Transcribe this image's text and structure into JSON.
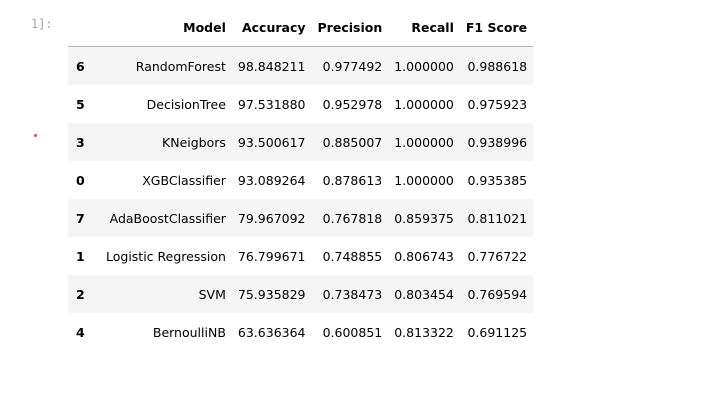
{
  "cell": {
    "prompt": "1]:"
  },
  "table": {
    "columns": [
      "Model",
      "Accuracy",
      "Precision",
      "Recall",
      "F1 Score"
    ],
    "rows": [
      {
        "index": "6",
        "model": "RandomForest",
        "accuracy": "98.848211",
        "precision": "0.977492",
        "recall": "1.000000",
        "f1": "0.988618"
      },
      {
        "index": "5",
        "model": "DecisionTree",
        "accuracy": "97.531880",
        "precision": "0.952978",
        "recall": "1.000000",
        "f1": "0.975923"
      },
      {
        "index": "3",
        "model": "KNeigbors",
        "accuracy": "93.500617",
        "precision": "0.885007",
        "recall": "1.000000",
        "f1": "0.938996"
      },
      {
        "index": "0",
        "model": "XGBClassifier",
        "accuracy": "93.089264",
        "precision": "0.878613",
        "recall": "1.000000",
        "f1": "0.935385"
      },
      {
        "index": "7",
        "model": "AdaBoostClassifier",
        "accuracy": "79.967092",
        "precision": "0.767818",
        "recall": "0.859375",
        "f1": "0.811021"
      },
      {
        "index": "1",
        "model": "Logistic Regression",
        "accuracy": "76.799671",
        "precision": "0.748855",
        "recall": "0.806743",
        "f1": "0.776722"
      },
      {
        "index": "2",
        "model": "SVM",
        "accuracy": "75.935829",
        "precision": "0.738473",
        "recall": "0.803454",
        "f1": "0.769594"
      },
      {
        "index": "4",
        "model": "BernoulliNB",
        "accuracy": "63.636364",
        "precision": "0.600851",
        "recall": "0.813322",
        "f1": "0.691125"
      }
    ]
  }
}
